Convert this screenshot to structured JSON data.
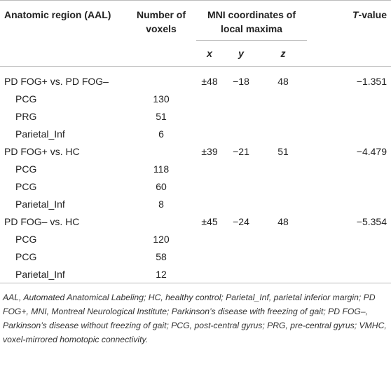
{
  "table": {
    "headers": {
      "region": "Anatomic region (AAL)",
      "voxels": "Number of voxels",
      "mni": "MNI coordinates of local maxima",
      "x": "x",
      "y": "y",
      "z": "z",
      "t": "T-value"
    },
    "groups": [
      {
        "label": "PD FOG+ vs. PD FOG–",
        "x": "±48",
        "y": "−18",
        "z": "48",
        "t": "−1.351",
        "regions": [
          {
            "name": "PCG",
            "voxels": 130
          },
          {
            "name": "PRG",
            "voxels": 51
          },
          {
            "name": "Parietal_Inf",
            "voxels": 6
          }
        ]
      },
      {
        "label": "PD FOG+ vs. HC",
        "x": "±39",
        "y": "−21",
        "z": "51",
        "t": "−4.479",
        "regions": [
          {
            "name": "PCG",
            "voxels": 118
          },
          {
            "name": "PCG",
            "voxels": 60
          },
          {
            "name": "Parietal_Inf",
            "voxels": 8
          }
        ]
      },
      {
        "label": "PD FOG– vs. HC",
        "x": "±45",
        "y": "−24",
        "z": "48",
        "t": "−5.354",
        "regions": [
          {
            "name": "PCG",
            "voxels": 120
          },
          {
            "name": "PCG",
            "voxels": 58
          },
          {
            "name": "Parietal_Inf",
            "voxels": 12
          }
        ]
      }
    ],
    "footnote": "AAL, Automated Anatomical Labeling; HC, healthy control; Parietal_Inf, parietal inferior margin; PD FOG+, MNI, Montreal Neurological Institute; Parkinson’s disease with freezing of gait; PD FOG–, Parkinson’s disease without freezing of gait; PCG, post-central gyrus; PRG, pre-central gyrus; VMHC, voxel-mirrored homotopic connectivity."
  }
}
